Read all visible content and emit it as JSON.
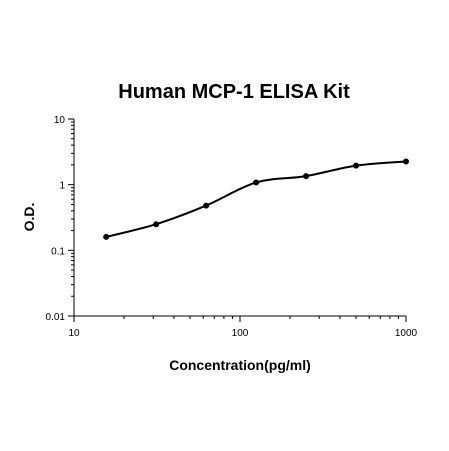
{
  "chart_data": {
    "type": "scatter",
    "title": "Human MCP-1 ELISA Kit",
    "xlabel": "Concentration(pg/ml)",
    "ylabel": "O.D.",
    "x_scale": "log",
    "y_scale": "log",
    "xlim": [
      10,
      1000
    ],
    "ylim": [
      0.01,
      10
    ],
    "x_ticks": [
      "10",
      "100",
      "1000"
    ],
    "y_ticks": [
      "0.01",
      "0.1",
      "1",
      "10"
    ],
    "grid": false,
    "legend": "none",
    "series": [
      {
        "x": [
          15.625,
          31.25,
          62.5,
          125,
          250,
          500,
          1000
        ],
        "y": [
          0.16,
          0.25,
          0.48,
          1.08,
          1.35,
          1.95,
          2.25
        ],
        "fit_curve": true
      }
    ],
    "colors": {
      "marker": "#000000",
      "curve": "#000000",
      "axis": "#000000"
    }
  }
}
